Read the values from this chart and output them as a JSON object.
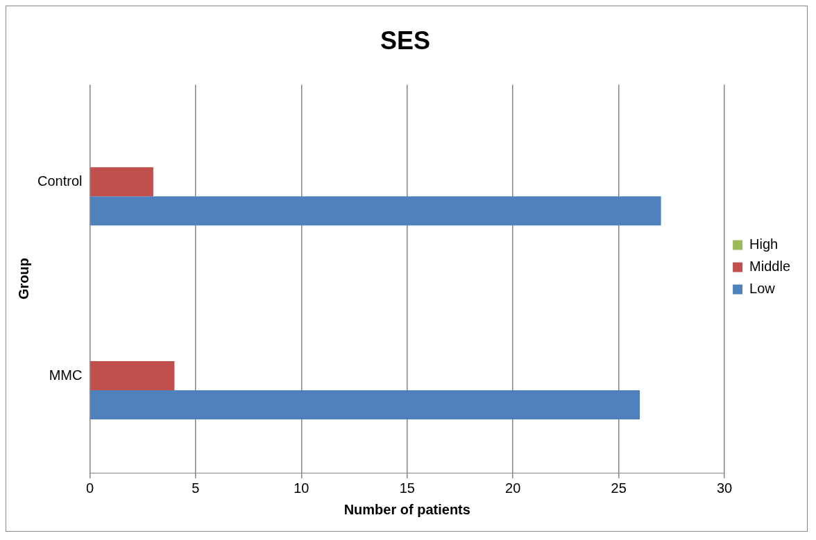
{
  "chart_data": {
    "type": "bar",
    "orientation": "horizontal",
    "title": "SES",
    "xlabel": "Number of patients",
    "ylabel": "Group",
    "categories": [
      "Control",
      "MMC"
    ],
    "series": [
      {
        "name": "High",
        "color": "#9bbb59",
        "values": [
          0,
          0
        ]
      },
      {
        "name": "Middle",
        "color": "#c0504d",
        "values": [
          3,
          4
        ]
      },
      {
        "name": "Low",
        "color": "#4f81bd",
        "values": [
          27,
          26
        ]
      }
    ],
    "xlim": [
      0,
      30
    ],
    "xticks": [
      0,
      5,
      10,
      15,
      20,
      25,
      30
    ],
    "grid": "x",
    "legend": "right"
  }
}
